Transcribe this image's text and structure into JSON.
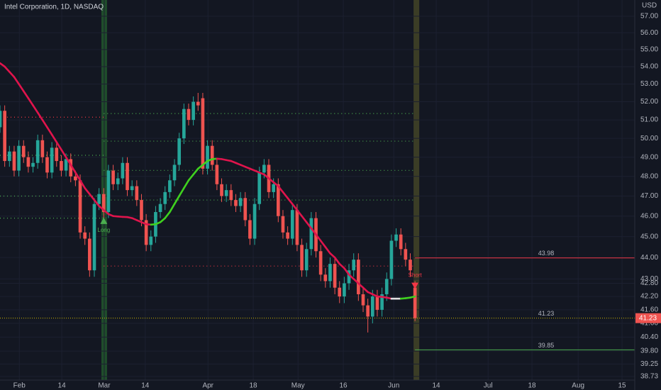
{
  "chart_data": {
    "type": "candlestick",
    "title": "Intel Corporation, 1D, NASDAQ",
    "currency": "USD",
    "log_scale": true,
    "grid": true,
    "up_color": "#26a69a",
    "down_color": "#ef5350",
    "ylim": [
      38.58,
      58.0
    ],
    "yticks": [
      {
        "value": 57,
        "label": "57.00"
      },
      {
        "value": 56,
        "label": "56.00"
      },
      {
        "value": 55,
        "label": "55.00"
      },
      {
        "value": 54,
        "label": "54.00"
      },
      {
        "value": 53,
        "label": "53.00"
      },
      {
        "value": 52,
        "label": "52.00"
      },
      {
        "value": 51,
        "label": "51.00"
      },
      {
        "value": 50,
        "label": "50.00"
      },
      {
        "value": 49,
        "label": "49.00"
      },
      {
        "value": 48,
        "label": "48.00"
      },
      {
        "value": 47,
        "label": "47.00"
      },
      {
        "value": 46,
        "label": "46.00"
      },
      {
        "value": 45,
        "label": "45.00"
      },
      {
        "value": 44,
        "label": "44.00"
      },
      {
        "value": 43,
        "label": "43.00"
      },
      {
        "value": 42.8,
        "label": "42.80"
      },
      {
        "value": 42.2,
        "label": "42.20"
      },
      {
        "value": 41.6,
        "label": "41.60"
      },
      {
        "value": 41,
        "label": "41.00"
      },
      {
        "value": 40.4,
        "label": "40.40"
      },
      {
        "value": 39.8,
        "label": "39.80"
      },
      {
        "value": 39.25,
        "label": "39.25"
      },
      {
        "value": 38.73,
        "label": "38.73"
      }
    ],
    "xlim": [
      0,
      134.6
    ],
    "xticks": [
      {
        "value": 4.1,
        "label": "Feb"
      },
      {
        "value": 13.1,
        "label": "14"
      },
      {
        "value": 22.1,
        "label": "Mar"
      },
      {
        "value": 30.8,
        "label": "14"
      },
      {
        "value": 44.1,
        "label": "Apr"
      },
      {
        "value": 53.7,
        "label": "18"
      },
      {
        "value": 63.2,
        "label": "May"
      },
      {
        "value": 72.8,
        "label": "16"
      },
      {
        "value": 83.5,
        "label": "Jun"
      },
      {
        "value": 92.5,
        "label": "14"
      },
      {
        "value": 103.5,
        "label": "Jul"
      },
      {
        "value": 112.8,
        "label": "18"
      },
      {
        "value": 122.6,
        "label": "Aug"
      },
      {
        "value": 131.9,
        "label": "15"
      }
    ],
    "open": [
      50.6,
      51.5,
      48.8,
      49.3,
      48.3,
      49.6,
      49.0,
      48.5,
      48.7,
      49.9,
      49.0,
      48.2,
      49.5,
      48.8,
      48.3,
      48.9,
      48.0,
      47.8,
      45.2,
      44.9,
      43.4,
      46.6,
      47.1,
      46.2,
      48.3,
      47.6,
      47.9,
      48.7,
      47.3,
      47.5,
      46.8,
      45.8,
      44.6,
      45.0,
      46.2,
      46.6,
      47.2,
      47.8,
      48.6,
      50.0,
      51.6,
      51.0,
      52.0,
      52.2,
      48.4,
      49.6,
      48.6,
      47.6,
      47.0,
      47.3,
      46.8,
      46.5,
      46.9,
      45.8,
      44.9,
      46.6,
      48.2,
      48.6,
      47.2,
      47.6,
      46.0,
      45.2,
      44.9,
      46.3,
      44.6,
      43.4,
      44.4,
      45.9,
      44.3,
      43.2,
      42.9,
      43.7,
      42.6,
      42.2,
      42.8,
      43.4,
      43.9,
      42.3,
      41.8,
      41.3,
      42.2,
      41.6,
      42.3,
      43.0,
      44.8,
      45.1,
      44.4,
      43.9,
      42.6
    ],
    "high": [
      51.8,
      51.8,
      49.6,
      49.6,
      49.9,
      49.9,
      49.3,
      49.0,
      50.2,
      50.2,
      49.3,
      49.8,
      49.8,
      49.1,
      49.2,
      49.2,
      48.3,
      48.1,
      45.5,
      45.2,
      46.9,
      47.4,
      47.4,
      48.6,
      48.6,
      48.2,
      49.0,
      49.0,
      47.8,
      47.8,
      47.1,
      46.1,
      45.3,
      46.5,
      46.9,
      47.5,
      48.1,
      48.9,
      50.3,
      51.9,
      51.9,
      52.3,
      52.5,
      52.5,
      49.9,
      49.9,
      48.9,
      47.9,
      47.6,
      47.6,
      47.1,
      47.2,
      47.2,
      46.1,
      46.9,
      48.5,
      48.9,
      48.9,
      47.9,
      47.9,
      46.3,
      45.5,
      46.6,
      46.6,
      44.9,
      44.7,
      46.2,
      46.2,
      44.6,
      43.5,
      44.0,
      44.0,
      42.9,
      43.1,
      43.7,
      44.2,
      44.2,
      42.6,
      42.1,
      42.5,
      42.5,
      42.6,
      43.3,
      45.1,
      45.4,
      45.4,
      44.7,
      44.2,
      42.9
    ],
    "low": [
      50.3,
      48.5,
      48.5,
      48.0,
      48.0,
      48.7,
      48.2,
      48.2,
      48.4,
      48.7,
      47.9,
      47.9,
      48.5,
      48.0,
      48.0,
      47.7,
      47.5,
      44.9,
      44.6,
      43.1,
      43.1,
      46.3,
      45.9,
      45.9,
      47.3,
      47.3,
      47.6,
      47.0,
      47.0,
      46.5,
      45.5,
      44.3,
      44.3,
      44.7,
      45.9,
      46.3,
      46.9,
      47.5,
      48.3,
      49.7,
      50.7,
      50.7,
      51.5,
      48.1,
      48.1,
      48.3,
      47.3,
      46.7,
      46.7,
      46.5,
      46.2,
      46.2,
      45.5,
      44.6,
      44.6,
      46.3,
      47.9,
      46.9,
      46.9,
      45.7,
      44.9,
      44.6,
      44.6,
      44.3,
      43.1,
      43.1,
      44.1,
      44.0,
      42.9,
      42.6,
      42.6,
      42.3,
      41.9,
      41.9,
      42.5,
      43.1,
      42.0,
      41.5,
      40.6,
      41.0,
      41.3,
      41.3,
      42.0,
      42.7,
      44.5,
      44.1,
      43.6,
      43.1,
      41.1
    ],
    "close": [
      51.5,
      48.8,
      49.3,
      48.3,
      49.6,
      49.0,
      48.5,
      48.7,
      49.9,
      49.0,
      48.2,
      49.5,
      48.8,
      48.3,
      48.9,
      48.0,
      47.8,
      45.2,
      44.9,
      43.4,
      46.6,
      47.1,
      46.2,
      48.3,
      47.6,
      47.9,
      48.7,
      47.3,
      47.5,
      46.8,
      45.8,
      44.6,
      45.0,
      46.2,
      46.6,
      47.2,
      47.8,
      48.6,
      50.0,
      51.6,
      51.0,
      52.0,
      51.8,
      48.4,
      49.6,
      48.6,
      47.6,
      47.0,
      47.3,
      46.8,
      46.5,
      46.9,
      45.8,
      44.9,
      46.6,
      48.2,
      48.6,
      47.2,
      47.6,
      46.0,
      45.2,
      44.9,
      46.3,
      44.6,
      43.4,
      44.4,
      45.9,
      44.3,
      43.2,
      42.9,
      43.7,
      42.6,
      42.2,
      42.8,
      43.4,
      43.9,
      42.3,
      41.8,
      41.3,
      42.2,
      41.6,
      42.3,
      43.0,
      44.8,
      45.1,
      44.4,
      43.9,
      43.4,
      41.23
    ],
    "ma": [
      54.2,
      54.0,
      53.7,
      53.4,
      53.0,
      52.6,
      52.2,
      51.8,
      51.4,
      51.0,
      50.6,
      50.2,
      49.8,
      49.4,
      49.0,
      48.6,
      48.2,
      47.8,
      47.4,
      47.1,
      46.8,
      46.5,
      46.3,
      46.1,
      46.0,
      45.98,
      45.96,
      45.95,
      45.9,
      45.8,
      45.7,
      45.6,
      45.58,
      45.6,
      45.7,
      45.9,
      46.2,
      46.6,
      47.0,
      47.4,
      47.8,
      48.1,
      48.4,
      48.6,
      48.8,
      48.9,
      48.92,
      48.9,
      48.85,
      48.8,
      48.7,
      48.6,
      48.5,
      48.4,
      48.3,
      48.2,
      48.1,
      47.9,
      47.7,
      47.5,
      47.2,
      46.9,
      46.6,
      46.3,
      46.0,
      45.7,
      45.4,
      45.1,
      44.8,
      44.5,
      44.2,
      44.0,
      43.7,
      43.5,
      43.2,
      43.0,
      42.8,
      42.6,
      42.4,
      42.3,
      42.2,
      42.18,
      42.15,
      42.1,
      42.1,
      42.1,
      42.12,
      42.15,
      42.2
    ],
    "highlights": [
      {
        "x": 22.1,
        "color": "#1f4d2b"
      },
      {
        "x": 88.3,
        "color": "#3b3d26"
      }
    ],
    "signals": [
      {
        "label": "Long",
        "x": 22,
        "value": 45.75,
        "color": "#4caf50",
        "direction": "up"
      },
      {
        "label": "Short",
        "x": 88,
        "value": 42.7,
        "color": "#f23645",
        "direction": "down"
      }
    ],
    "levels": [
      {
        "value": 51.35,
        "from": 22,
        "to": 88,
        "color": "#4caf50"
      },
      {
        "value": 49.85,
        "from": 22,
        "to": 88,
        "color": "#4caf50"
      },
      {
        "value": 48.31,
        "from": 22,
        "to": 88,
        "color": "#4caf50"
      },
      {
        "value": 46.8,
        "from": 22,
        "to": 88,
        "color": "#4caf50"
      },
      {
        "value": 43.6,
        "from": 22,
        "to": 88,
        "color": "#f23645"
      },
      {
        "value": 51.15,
        "from": 0,
        "to": 22,
        "color": "#f23645"
      },
      {
        "value": 49.1,
        "from": 0,
        "to": 22,
        "color": "#4caf50"
      },
      {
        "value": 47.0,
        "from": 0,
        "to": 22,
        "color": "#4caf50"
      },
      {
        "value": 45.9,
        "from": 0,
        "to": 22,
        "color": "#4caf50"
      }
    ],
    "hlines": [
      {
        "value": 43.98,
        "from": 88,
        "color": "#f23645"
      },
      {
        "value": 41.23,
        "from": 0,
        "color": "#c8b400"
      },
      {
        "value": 39.85,
        "from": 88,
        "color": "#4caf50"
      }
    ]
  }
}
